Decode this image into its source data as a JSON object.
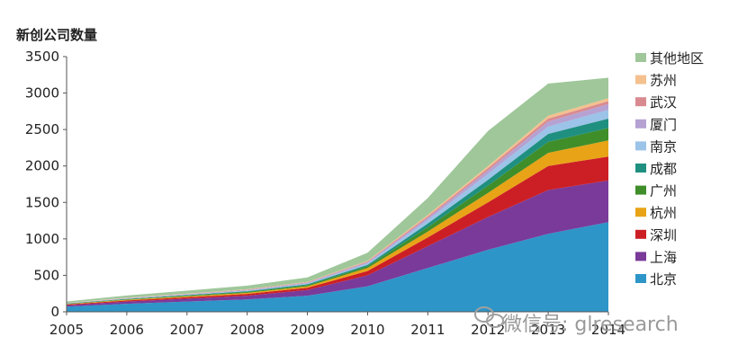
{
  "chart_data": {
    "type": "area",
    "stacked": true,
    "title": "",
    "ylabel": "新创公司数量",
    "xlabel": "",
    "x": [
      2005,
      2006,
      2007,
      2008,
      2009,
      2010,
      2011,
      2012,
      2013,
      2014
    ],
    "x_tick_labels": [
      "2005",
      "2006",
      "2007",
      "2008",
      "2009",
      "2010",
      "2011",
      "2012",
      "2013",
      "2014"
    ],
    "ylim": [
      0,
      3500
    ],
    "y_ticks": [
      0,
      500,
      1000,
      1500,
      2000,
      2500,
      3000,
      3500
    ],
    "y_tick_labels": [
      "0",
      "500",
      "1000",
      "1500",
      "2000",
      "2500",
      "3000",
      "3500"
    ],
    "grid": false,
    "legend_position": "right",
    "series": [
      {
        "name": "北京",
        "color": "#2e95c8",
        "values": [
          70,
          110,
          140,
          170,
          220,
          350,
          600,
          850,
          1070,
          1230
        ]
      },
      {
        "name": "上海",
        "color": "#7a3a9a",
        "values": [
          20,
          30,
          40,
          50,
          80,
          150,
          300,
          450,
          600,
          570
        ]
      },
      {
        "name": "深圳",
        "color": "#cc1f25",
        "values": [
          10,
          15,
          20,
          25,
          30,
          60,
          120,
          200,
          330,
          330
        ]
      },
      {
        "name": "杭州",
        "color": "#e8a317",
        "values": [
          5,
          10,
          12,
          15,
          20,
          40,
          80,
          130,
          180,
          220
        ]
      },
      {
        "name": "广州",
        "color": "#3f8e2a",
        "values": [
          5,
          8,
          10,
          12,
          15,
          25,
          60,
          100,
          150,
          170
        ]
      },
      {
        "name": "成都",
        "color": "#1f9080",
        "values": [
          3,
          5,
          7,
          10,
          12,
          20,
          50,
          80,
          110,
          130
        ]
      },
      {
        "name": "南京",
        "color": "#9cc3e8",
        "values": [
          3,
          5,
          7,
          10,
          12,
          20,
          50,
          80,
          100,
          120
        ]
      },
      {
        "name": "厦门",
        "color": "#b5a2d2",
        "values": [
          2,
          4,
          5,
          7,
          10,
          15,
          30,
          50,
          70,
          80
        ]
      },
      {
        "name": "武汉",
        "color": "#d98a90",
        "values": [
          2,
          3,
          4,
          5,
          6,
          10,
          20,
          30,
          40,
          40
        ]
      },
      {
        "name": "苏州",
        "color": "#f3c08e",
        "values": [
          2,
          3,
          4,
          5,
          6,
          10,
          20,
          30,
          40,
          40
        ]
      },
      {
        "name": "其他地区",
        "color": "#9fc79a",
        "values": [
          20,
          30,
          40,
          50,
          60,
          110,
          230,
          480,
          440,
          280
        ]
      }
    ]
  },
  "watermark": {
    "text": "微信号: glresearch"
  }
}
